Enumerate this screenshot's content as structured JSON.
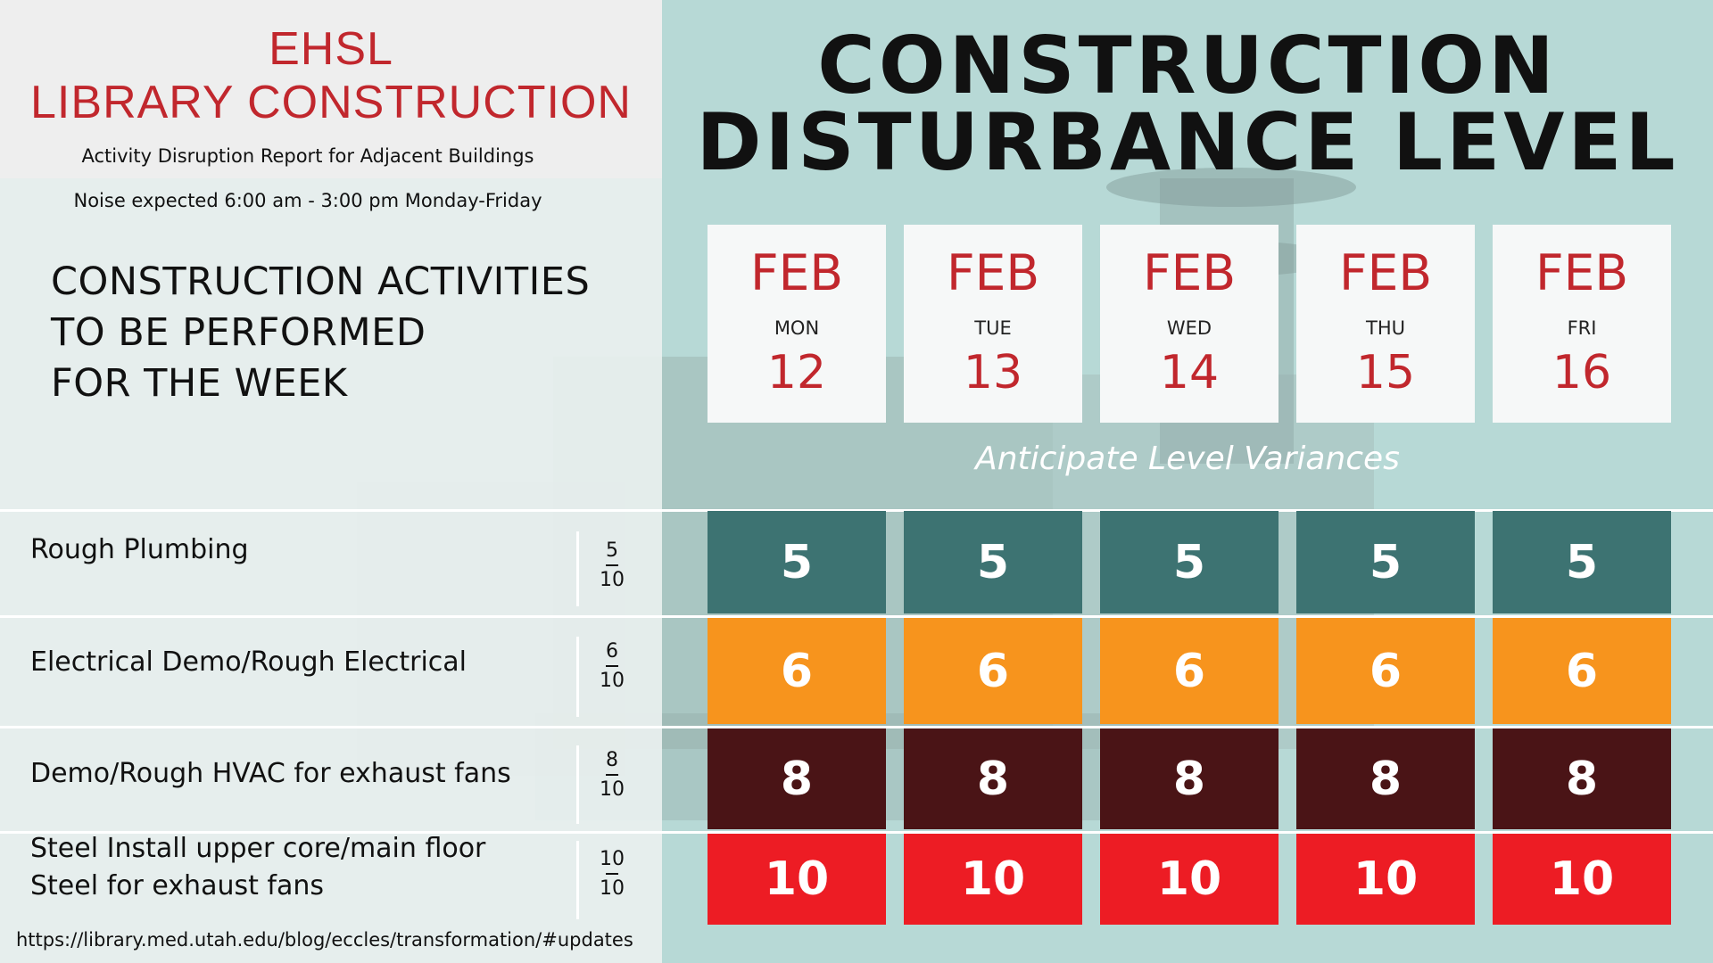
{
  "header": {
    "brand_line1": "EHSL",
    "brand_line2": "LIBRARY CONSTRUCTION",
    "report_subtitle": "Activity Disruption Report for Adjacent Buildings",
    "noise_note": "Noise expected 6:00 am - 3:00 pm Monday-Friday"
  },
  "title": {
    "line1": "CONSTRUCTION",
    "line2": "DISTURBANCE LEVEL"
  },
  "activities_heading": {
    "line1": "CONSTRUCTION ACTIVITIES",
    "line2": "TO BE PERFORMED",
    "line3": "FOR THE WEEK"
  },
  "days": [
    {
      "month": "FEB",
      "weekday": "MON",
      "date": "12"
    },
    {
      "month": "FEB",
      "weekday": "TUE",
      "date": "13"
    },
    {
      "month": "FEB",
      "weekday": "WED",
      "date": "14"
    },
    {
      "month": "FEB",
      "weekday": "THU",
      "date": "15"
    },
    {
      "month": "FEB",
      "weekday": "FRI",
      "date": "16"
    }
  ],
  "variance_note": "Anticipate Level Variances",
  "activities": [
    {
      "label_line1": "Rough Plumbing",
      "label_line2": "",
      "level": "5",
      "max": "10",
      "color": "#3d7372",
      "daily": [
        "5",
        "5",
        "5",
        "5",
        "5"
      ]
    },
    {
      "label_line1": "Electrical Demo/Rough Electrical",
      "label_line2": "",
      "level": "6",
      "max": "10",
      "color": "#f7941d",
      "daily": [
        "6",
        "6",
        "6",
        "6",
        "6"
      ]
    },
    {
      "label_line1": "Demo/Rough HVAC for exhaust fans",
      "label_line2": "",
      "level": "8",
      "max": "10",
      "color": "#4a1416",
      "daily": [
        "8",
        "8",
        "8",
        "8",
        "8"
      ]
    },
    {
      "label_line1": "Steel Install upper core/main floor",
      "label_line2": "Steel for exhaust fans",
      "level": "10",
      "max": "10",
      "color": "#ed1c24",
      "daily": [
        "10",
        "10",
        "10",
        "10",
        "10"
      ]
    }
  ],
  "footer": {
    "url": "https://library.med.utah.edu/blog/eccles/transformation/#updates"
  }
}
